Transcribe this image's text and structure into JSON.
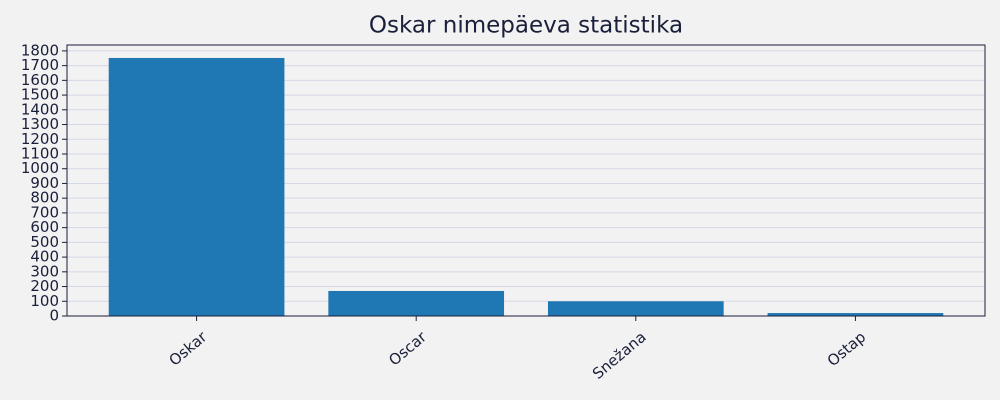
{
  "chart_data": {
    "type": "bar",
    "title": "Oskar nimepäeva statistika",
    "categories": [
      "Oskar",
      "Oscar",
      "Snežana",
      "Ostap"
    ],
    "values": [
      1752,
      170,
      100,
      20
    ],
    "color": "#1f77b4",
    "ylim": [
      0,
      1840
    ],
    "yticks": [
      0,
      100,
      200,
      300,
      400,
      500,
      600,
      700,
      800,
      900,
      1000,
      1100,
      1200,
      1300,
      1400,
      1500,
      1600,
      1700,
      1800
    ],
    "grid": true
  }
}
